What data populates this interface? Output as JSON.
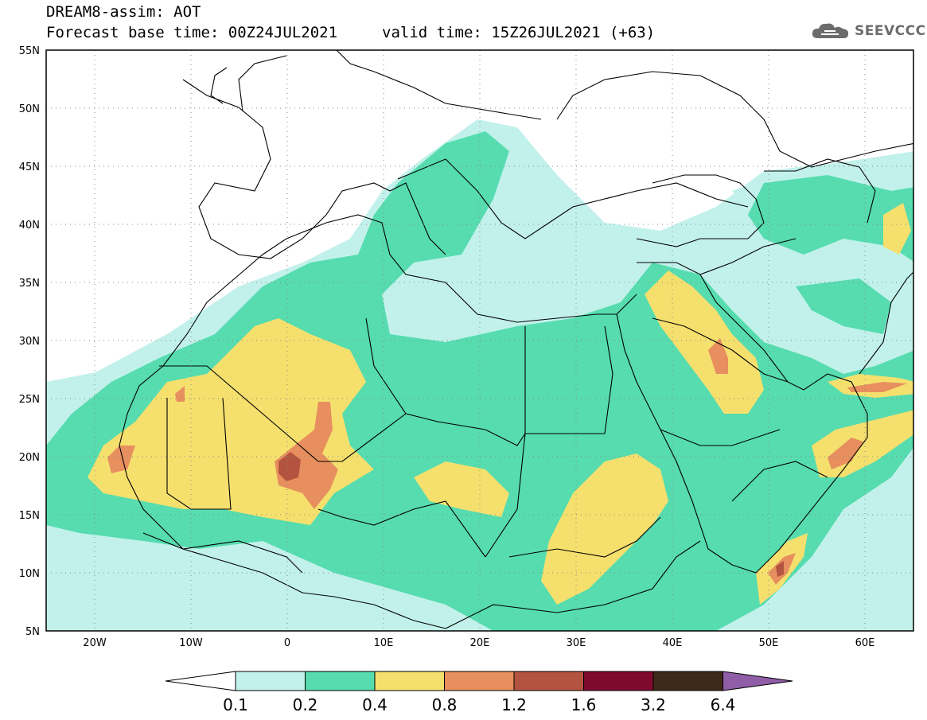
{
  "header": {
    "line1": "DREAM8-assim: AOT",
    "base_time": "Forecast base time: 00Z24JUL2021",
    "valid_time": "valid time: 15Z26JUL2021 (+63)"
  },
  "logo": {
    "text": "SEEVCCC",
    "icon": "cloud-icon"
  },
  "map": {
    "lon_range": [
      -25,
      65
    ],
    "lat_range": [
      5,
      55
    ],
    "lat_ticks": [
      "5N",
      "10N",
      "15N",
      "20N",
      "25N",
      "30N",
      "35N",
      "40N",
      "45N",
      "50N",
      "55N"
    ],
    "lon_ticks": [
      "20W",
      "10W",
      "0",
      "10E",
      "20E",
      "30E",
      "40E",
      "50E",
      "60E"
    ]
  },
  "colorbar": {
    "labels": [
      "0.1",
      "0.2",
      "0.4",
      "0.8",
      "1.2",
      "1.6",
      "3.2",
      "6.4"
    ],
    "colors": [
      "#ffffff",
      "#c2f1eb",
      "#56dcaf",
      "#f5e06e",
      "#e78f5e",
      "#b4533f",
      "#7e0a2d",
      "#3f2a1a",
      "#8f5ea7"
    ]
  }
}
